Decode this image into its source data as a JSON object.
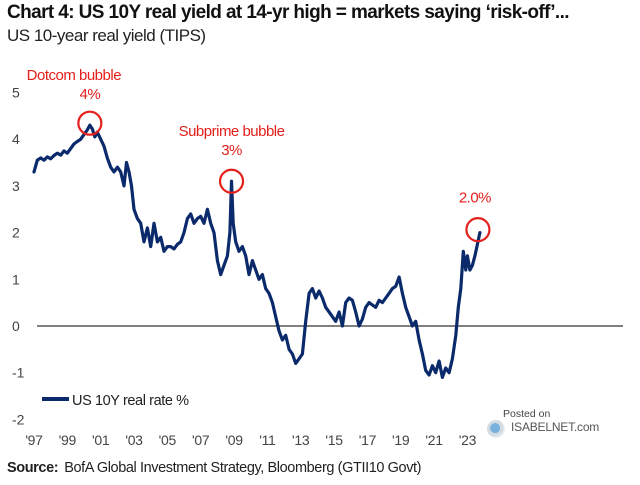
{
  "header": {
    "title": "Chart 4: US 10Y real yield at 14-yr high = markets saying ‘risk-off’...",
    "subtitle": "US 10-year real yield (TIPS)"
  },
  "source": {
    "label": "Source:",
    "text": "BofA Global Investment Strategy, Bloomberg (GTII10 Govt)"
  },
  "watermark": {
    "posted": "Posted on",
    "site": "ISABELNET.com"
  },
  "colors": {
    "series": "#0b2a6b",
    "annotation": "#e3201b",
    "zero_line": "#555555",
    "tick_text": "#444444"
  },
  "chart_data": {
    "type": "line",
    "title": "Chart 4: US 10Y real yield at 14-yr high = markets saying ‘risk-off’...",
    "subtitle": "US 10-year real yield (TIPS)",
    "xlabel": "",
    "ylabel": "",
    "xlim": [
      1996.8,
      2024.2
    ],
    "ylim": [
      -2,
      5
    ],
    "grid": false,
    "legend": {
      "position": "bottom-left",
      "entries": [
        "US 10Y real rate %"
      ]
    },
    "y_ticks": [
      {
        "value": 5,
        "label": "5"
      },
      {
        "value": 4,
        "label": "4"
      },
      {
        "value": 3,
        "label": "3"
      },
      {
        "value": 2,
        "label": "2"
      },
      {
        "value": 1,
        "label": "1"
      },
      {
        "value": 0,
        "label": "0"
      },
      {
        "value": -1,
        "label": "-1"
      },
      {
        "value": -2,
        "label": "-2"
      }
    ],
    "x_ticks": [
      {
        "value": 1997,
        "label": "'97"
      },
      {
        "value": 1999,
        "label": "'99"
      },
      {
        "value": 2001,
        "label": "'01"
      },
      {
        "value": 2003,
        "label": "'03"
      },
      {
        "value": 2005,
        "label": "'05"
      },
      {
        "value": 2007,
        "label": "'07"
      },
      {
        "value": 2009,
        "label": "'09"
      },
      {
        "value": 2011,
        "label": "'11"
      },
      {
        "value": 2013,
        "label": "'13"
      },
      {
        "value": 2015,
        "label": "'15"
      },
      {
        "value": 2017,
        "label": "'17"
      },
      {
        "value": 2019,
        "label": "'19"
      },
      {
        "value": 2021,
        "label": "'21"
      },
      {
        "value": 2023,
        "label": "'23"
      }
    ],
    "series": [
      {
        "name": "US 10Y real rate %",
        "x": [
          1997.0,
          1997.2,
          1997.4,
          1997.6,
          1997.8,
          1998.0,
          1998.2,
          1998.4,
          1998.6,
          1998.8,
          1999.0,
          1999.2,
          1999.4,
          1999.6,
          1999.8,
          2000.0,
          2000.2,
          2000.35,
          2000.5,
          2000.65,
          2000.8,
          2001.0,
          2001.2,
          2001.4,
          2001.6,
          2001.8,
          2002.0,
          2002.2,
          2002.4,
          2002.55,
          2002.7,
          2002.85,
          2003.0,
          2003.2,
          2003.4,
          2003.6,
          2003.8,
          2004.0,
          2004.2,
          2004.4,
          2004.6,
          2004.8,
          2005.0,
          2005.2,
          2005.4,
          2005.6,
          2005.8,
          2006.0,
          2006.2,
          2006.4,
          2006.6,
          2006.8,
          2007.0,
          2007.2,
          2007.4,
          2007.6,
          2007.8,
          2008.0,
          2008.2,
          2008.4,
          2008.6,
          2008.75,
          2008.85,
          2008.95,
          2009.1,
          2009.3,
          2009.5,
          2009.7,
          2009.9,
          2010.1,
          2010.3,
          2010.5,
          2010.7,
          2010.9,
          2011.1,
          2011.3,
          2011.5,
          2011.7,
          2011.9,
          2012.1,
          2012.3,
          2012.5,
          2012.7,
          2012.9,
          2013.1,
          2013.3,
          2013.5,
          2013.7,
          2013.9,
          2014.1,
          2014.3,
          2014.5,
          2014.7,
          2014.9,
          2015.1,
          2015.3,
          2015.5,
          2015.7,
          2015.9,
          2016.1,
          2016.3,
          2016.5,
          2016.7,
          2016.9,
          2017.1,
          2017.3,
          2017.5,
          2017.7,
          2017.9,
          2018.1,
          2018.3,
          2018.5,
          2018.7,
          2018.9,
          2019.1,
          2019.3,
          2019.5,
          2019.7,
          2019.9,
          2020.1,
          2020.3,
          2020.5,
          2020.7,
          2020.9,
          2021.1,
          2021.3,
          2021.5,
          2021.7,
          2021.9,
          2022.1,
          2022.3,
          2022.45,
          2022.6,
          2022.75,
          2022.9,
          2023.0,
          2023.15,
          2023.3,
          2023.45,
          2023.6,
          2023.75
        ],
        "y": [
          3.3,
          3.55,
          3.6,
          3.55,
          3.62,
          3.58,
          3.65,
          3.7,
          3.66,
          3.75,
          3.7,
          3.8,
          3.9,
          3.95,
          4.0,
          4.1,
          4.2,
          4.3,
          4.22,
          4.05,
          4.15,
          4.0,
          3.85,
          3.6,
          3.4,
          3.3,
          3.4,
          3.3,
          3.0,
          3.5,
          3.3,
          3.0,
          2.5,
          2.3,
          2.2,
          1.8,
          2.1,
          1.7,
          2.2,
          1.8,
          1.9,
          1.6,
          1.7,
          1.7,
          1.65,
          1.75,
          1.8,
          2.0,
          2.3,
          2.4,
          2.2,
          2.3,
          2.35,
          2.2,
          2.5,
          2.2,
          2.0,
          1.4,
          1.1,
          1.3,
          1.5,
          2.0,
          3.1,
          2.2,
          1.8,
          1.6,
          1.7,
          1.5,
          1.1,
          1.4,
          1.2,
          1.0,
          1.1,
          0.8,
          0.7,
          0.5,
          0.2,
          -0.1,
          -0.3,
          -0.2,
          -0.5,
          -0.6,
          -0.8,
          -0.7,
          -0.6,
          0.1,
          0.7,
          0.8,
          0.6,
          0.75,
          0.6,
          0.4,
          0.3,
          0.2,
          0.1,
          0.3,
          0.0,
          0.5,
          0.6,
          0.55,
          0.3,
          0.0,
          0.15,
          0.4,
          0.5,
          0.45,
          0.4,
          0.55,
          0.5,
          0.6,
          0.7,
          0.8,
          0.85,
          1.05,
          0.7,
          0.4,
          0.2,
          0.0,
          0.1,
          -0.3,
          -0.6,
          -0.95,
          -1.05,
          -0.85,
          -1.0,
          -0.75,
          -1.1,
          -0.9,
          -1.0,
          -0.7,
          -0.2,
          0.4,
          0.8,
          1.6,
          1.2,
          1.5,
          1.2,
          1.3,
          1.5,
          1.75,
          2.0
        ]
      }
    ],
    "annotations": [
      {
        "label": "Dotcom bubble",
        "value_label": "4%",
        "x": 2000.35,
        "y": 4.3
      },
      {
        "label": "Subprime bubble",
        "value_label": "3%",
        "x": 2008.85,
        "y": 3.1
      },
      {
        "label": "",
        "value_label": "2.0%",
        "x": 2023.75,
        "y": 2.0
      }
    ]
  }
}
